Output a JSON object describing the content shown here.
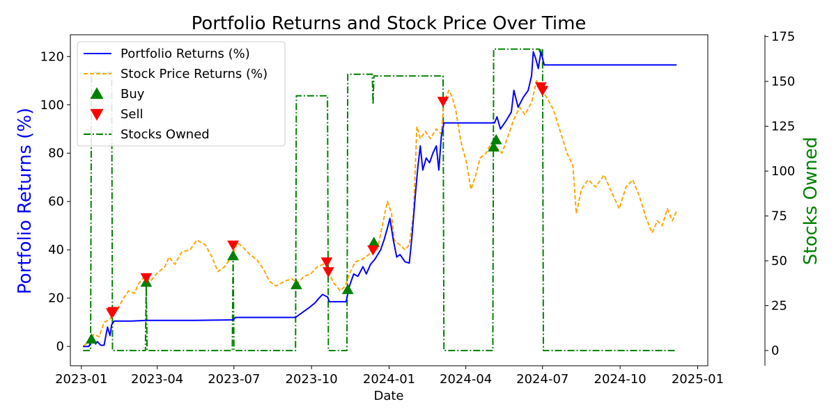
{
  "chart_data": {
    "type": "line",
    "title": "Portfolio Returns and Stock Price Over Time",
    "xlabel": "Date",
    "ylabel_left": "Portfolio Returns (%)",
    "ylabel_right": "Stocks Owned",
    "colors": {
      "portfolio": "#0000ff",
      "stock": "#ffa500",
      "stocks_owned": "#008000",
      "buy": "#008000",
      "sell": "#ff0000"
    },
    "legend": {
      "position": "top-left",
      "entries": [
        "Portfolio Returns (%)",
        "Stock Price Returns (%)",
        "Buy",
        "Sell",
        "Stocks Owned"
      ]
    },
    "x_ticks": [
      "2023-01",
      "2023-04",
      "2023-07",
      "2023-10",
      "2024-01",
      "2024-04",
      "2024-07",
      "2024-10",
      "2025-01"
    ],
    "y_left_ticks": [
      0,
      20,
      40,
      60,
      80,
      100,
      120
    ],
    "y_right_ticks": [
      0,
      25,
      50,
      75,
      100,
      125,
      150,
      175
    ],
    "xlim": [
      "2022-12-19",
      "2025-01-13"
    ],
    "ylim_left": [
      -8,
      129
    ],
    "ylim_right": [
      -8.5,
      176
    ],
    "series": [
      {
        "name": "Portfolio Returns (%)",
        "axis": "left",
        "style": "solid",
        "points": [
          [
            "2023-01-03",
            0
          ],
          [
            "2023-01-10",
            0
          ],
          [
            "2023-01-14",
            3
          ],
          [
            "2023-01-18",
            1
          ],
          [
            "2023-01-20",
            2
          ],
          [
            "2023-01-24",
            0.5
          ],
          [
            "2023-01-28",
            0.5
          ],
          [
            "2023-02-01",
            8
          ],
          [
            "2023-02-04",
            4.5
          ],
          [
            "2023-02-06",
            9
          ],
          [
            "2023-02-09",
            10.5
          ],
          [
            "2023-03-01",
            10.5
          ],
          [
            "2023-03-20",
            10.8
          ],
          [
            "2023-04-15",
            10.8
          ],
          [
            "2023-05-15",
            10.8
          ],
          [
            "2023-06-30",
            11
          ],
          [
            "2023-07-03",
            12
          ],
          [
            "2023-09-12",
            12
          ],
          [
            "2023-09-20",
            14
          ],
          [
            "2023-09-28",
            16
          ],
          [
            "2023-10-05",
            18
          ],
          [
            "2023-10-10",
            20
          ],
          [
            "2023-10-14",
            21.5
          ],
          [
            "2023-10-20",
            20.5
          ],
          [
            "2023-10-22",
            18.5
          ],
          [
            "2023-11-11",
            18.5
          ],
          [
            "2023-11-15",
            25
          ],
          [
            "2023-11-20",
            30
          ],
          [
            "2023-11-25",
            29
          ],
          [
            "2023-12-01",
            33
          ],
          [
            "2023-12-05",
            30
          ],
          [
            "2023-12-10",
            34
          ],
          [
            "2023-12-15",
            36
          ],
          [
            "2023-12-22",
            40
          ],
          [
            "2023-12-26",
            44
          ],
          [
            "2023-12-30",
            49
          ],
          [
            "2024-01-02",
            53
          ],
          [
            "2024-01-06",
            44
          ],
          [
            "2024-01-10",
            37
          ],
          [
            "2024-01-14",
            38
          ],
          [
            "2024-01-20",
            35
          ],
          [
            "2024-01-25",
            34.5
          ],
          [
            "2024-01-28",
            45
          ],
          [
            "2024-02-01",
            62
          ],
          [
            "2024-02-04",
            74
          ],
          [
            "2024-02-07",
            83
          ],
          [
            "2024-02-10",
            73
          ],
          [
            "2024-02-14",
            78
          ],
          [
            "2024-02-18",
            76
          ],
          [
            "2024-02-22",
            80
          ],
          [
            "2024-02-26",
            83
          ],
          [
            "2024-02-29",
            73
          ],
          [
            "2024-03-03",
            87
          ],
          [
            "2024-03-06",
            92.5
          ],
          [
            "2024-04-15",
            92.5
          ],
          [
            "2024-05-05",
            92.5
          ],
          [
            "2024-05-08",
            95
          ],
          [
            "2024-05-12",
            90
          ],
          [
            "2024-05-18",
            93
          ],
          [
            "2024-05-25",
            97
          ],
          [
            "2024-05-28",
            106
          ],
          [
            "2024-06-02",
            99
          ],
          [
            "2024-06-08",
            103
          ],
          [
            "2024-06-14",
            106
          ],
          [
            "2024-06-18",
            112
          ],
          [
            "2024-06-20",
            122
          ],
          [
            "2024-06-23",
            119
          ],
          [
            "2024-06-26",
            115
          ],
          [
            "2024-06-29",
            122
          ],
          [
            "2024-07-03",
            116.5
          ],
          [
            "2024-12-07",
            116.5
          ]
        ]
      },
      {
        "name": "Stock Price Returns (%)",
        "axis": "left",
        "style": "dashed",
        "points": [
          [
            "2023-01-03",
            0
          ],
          [
            "2023-01-10",
            2
          ],
          [
            "2023-01-16",
            5
          ],
          [
            "2023-01-22",
            4
          ],
          [
            "2023-01-28",
            10
          ],
          [
            "2023-02-03",
            11
          ],
          [
            "2023-02-08",
            13
          ],
          [
            "2023-02-14",
            16
          ],
          [
            "2023-02-20",
            20
          ],
          [
            "2023-02-26",
            23
          ],
          [
            "2023-03-05",
            22
          ],
          [
            "2023-03-10",
            26
          ],
          [
            "2023-03-17",
            29
          ],
          [
            "2023-03-24",
            27
          ],
          [
            "2023-03-31",
            30
          ],
          [
            "2023-04-10",
            33
          ],
          [
            "2023-04-15",
            37
          ],
          [
            "2023-04-22",
            34
          ],
          [
            "2023-04-30",
            39
          ],
          [
            "2023-05-10",
            40
          ],
          [
            "2023-05-18",
            44
          ],
          [
            "2023-05-28",
            42
          ],
          [
            "2023-06-05",
            37
          ],
          [
            "2023-06-12",
            31
          ],
          [
            "2023-06-20",
            33
          ],
          [
            "2023-06-30",
            38
          ],
          [
            "2023-07-05",
            43
          ],
          [
            "2023-07-12",
            41
          ],
          [
            "2023-07-20",
            38
          ],
          [
            "2023-07-28",
            36
          ],
          [
            "2023-08-05",
            32
          ],
          [
            "2023-08-12",
            27
          ],
          [
            "2023-08-20",
            25
          ],
          [
            "2023-08-30",
            27
          ],
          [
            "2023-09-08",
            28
          ],
          [
            "2023-09-14",
            26
          ],
          [
            "2023-09-22",
            29
          ],
          [
            "2023-09-30",
            30
          ],
          [
            "2023-10-08",
            33
          ],
          [
            "2023-10-15",
            34
          ],
          [
            "2023-10-19",
            33
          ],
          [
            "2023-10-22",
            30
          ],
          [
            "2023-10-28",
            26
          ],
          [
            "2023-11-04",
            23
          ],
          [
            "2023-11-10",
            25
          ],
          [
            "2023-11-15",
            30
          ],
          [
            "2023-11-22",
            35
          ],
          [
            "2023-11-30",
            36
          ],
          [
            "2023-12-08",
            38
          ],
          [
            "2023-12-14",
            42
          ],
          [
            "2023-12-18",
            40
          ],
          [
            "2023-12-24",
            50
          ],
          [
            "2023-12-30",
            60
          ],
          [
            "2024-01-04",
            55
          ],
          [
            "2024-01-07",
            44
          ],
          [
            "2024-01-14",
            42
          ],
          [
            "2024-01-20",
            40
          ],
          [
            "2024-01-25",
            42
          ],
          [
            "2024-01-30",
            55
          ],
          [
            "2024-02-03",
            91
          ],
          [
            "2024-02-07",
            86
          ],
          [
            "2024-02-13",
            89
          ],
          [
            "2024-02-19",
            86
          ],
          [
            "2024-02-26",
            90
          ],
          [
            "2024-03-03",
            88
          ],
          [
            "2024-03-06",
            101
          ],
          [
            "2024-03-12",
            106
          ],
          [
            "2024-03-16",
            103
          ],
          [
            "2024-03-20",
            98
          ],
          [
            "2024-03-26",
            85
          ],
          [
            "2024-04-02",
            76
          ],
          [
            "2024-04-07",
            65
          ],
          [
            "2024-04-12",
            70
          ],
          [
            "2024-04-18",
            78
          ],
          [
            "2024-04-25",
            80
          ],
          [
            "2024-05-01",
            84
          ],
          [
            "2024-05-08",
            82
          ],
          [
            "2024-05-14",
            80
          ],
          [
            "2024-05-20",
            86
          ],
          [
            "2024-05-28",
            94
          ],
          [
            "2024-06-04",
            99
          ],
          [
            "2024-06-10",
            96
          ],
          [
            "2024-06-18",
            101
          ],
          [
            "2024-06-24",
            110
          ],
          [
            "2024-06-30",
            106
          ],
          [
            "2024-07-06",
            103
          ],
          [
            "2024-07-14",
            98
          ],
          [
            "2024-07-22",
            89
          ],
          [
            "2024-07-30",
            80
          ],
          [
            "2024-08-06",
            75
          ],
          [
            "2024-08-10",
            55
          ],
          [
            "2024-08-16",
            65
          ],
          [
            "2024-08-24",
            69
          ],
          [
            "2024-09-02",
            66
          ],
          [
            "2024-09-12",
            71
          ],
          [
            "2024-09-22",
            63
          ],
          [
            "2024-09-30",
            57
          ],
          [
            "2024-10-08",
            66
          ],
          [
            "2024-10-16",
            69
          ],
          [
            "2024-10-24",
            62
          ],
          [
            "2024-11-01",
            53
          ],
          [
            "2024-11-08",
            47
          ],
          [
            "2024-11-14",
            52
          ],
          [
            "2024-11-20",
            50
          ],
          [
            "2024-11-26",
            57
          ],
          [
            "2024-12-02",
            52
          ],
          [
            "2024-12-07",
            56
          ]
        ]
      },
      {
        "name": "Stocks Owned",
        "axis": "right",
        "style": "dashdot",
        "points": [
          [
            "2023-01-03",
            0
          ],
          [
            "2023-01-12",
            0
          ],
          [
            "2023-01-13",
            155
          ],
          [
            "2023-02-06",
            155
          ],
          [
            "2023-02-07",
            0
          ],
          [
            "2023-03-18",
            0
          ],
          [
            "2023-03-19",
            37
          ],
          [
            "2023-03-20",
            0
          ],
          [
            "2023-06-29",
            0
          ],
          [
            "2023-06-30",
            53
          ],
          [
            "2023-07-01",
            0
          ],
          [
            "2023-09-12",
            0
          ],
          [
            "2023-09-13",
            142
          ],
          [
            "2023-10-20",
            142
          ],
          [
            "2023-10-21",
            0
          ],
          [
            "2023-11-12",
            0
          ],
          [
            "2023-11-13",
            154
          ],
          [
            "2023-12-12",
            154
          ],
          [
            "2023-12-13",
            137
          ],
          [
            "2023-12-14",
            153
          ],
          [
            "2024-03-05",
            153
          ],
          [
            "2024-03-06",
            0
          ],
          [
            "2024-05-03",
            0
          ],
          [
            "2024-05-04",
            168
          ],
          [
            "2024-06-27",
            168
          ],
          [
            "2024-06-28",
            166
          ],
          [
            "2024-06-29",
            168
          ],
          [
            "2024-07-01",
            168
          ],
          [
            "2024-07-02",
            0
          ],
          [
            "2024-12-07",
            0
          ]
        ]
      }
    ],
    "buy_points": [
      [
        "2023-01-13",
        3
      ],
      [
        "2023-03-19",
        26.5
      ],
      [
        "2023-06-30",
        37.5
      ],
      [
        "2023-09-13",
        25.5
      ],
      [
        "2023-11-13",
        23.5
      ],
      [
        "2023-12-14",
        43
      ],
      [
        "2024-05-04",
        82.5
      ],
      [
        "2024-05-07",
        85.5
      ]
    ],
    "sell_points": [
      [
        "2023-02-06",
        14
      ],
      [
        "2023-02-08",
        14.5
      ],
      [
        "2023-03-19",
        28.5
      ],
      [
        "2023-06-30",
        42
      ],
      [
        "2023-10-19",
        35
      ],
      [
        "2023-10-21",
        31
      ],
      [
        "2023-12-13",
        40
      ],
      [
        "2024-03-05",
        101.5
      ],
      [
        "2024-06-29",
        107.5
      ],
      [
        "2024-07-01",
        106
      ]
    ]
  }
}
